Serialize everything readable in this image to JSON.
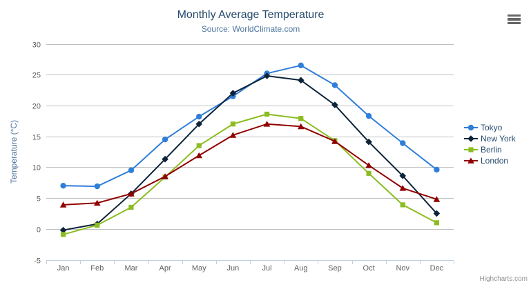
{
  "credits": {
    "label": "Highcharts.com"
  },
  "icons": {
    "export_menu": "hamburger"
  },
  "styles": {
    "title_color": "#274b6d",
    "subtitle_color": "#4d759e",
    "axis_title_color": "#4d759e",
    "axis_label_color": "#606060",
    "grid_color": "#c0c0c0",
    "axis_line_color": "#c0d0e0",
    "legend_text_color": "#274b6d",
    "credits_color": "#909090",
    "export_icon_color": "#666666",
    "background": "#ffffff"
  },
  "chart_data": {
    "type": "line",
    "title": "Monthly Average Temperature",
    "subtitle": "Source: WorldClimate.com",
    "xlabel": "",
    "ylabel": "Temperature (°C)",
    "categories": [
      "Jan",
      "Feb",
      "Mar",
      "Apr",
      "May",
      "Jun",
      "Jul",
      "Aug",
      "Sep",
      "Oct",
      "Nov",
      "Dec"
    ],
    "ylim": [
      -5,
      30
    ],
    "yticks": [
      -5,
      0,
      5,
      10,
      15,
      20,
      25,
      30
    ],
    "grid": true,
    "legend_position": "right",
    "series": [
      {
        "name": "Tokyo",
        "color": "#2f7ed8",
        "marker": "circle",
        "values": [
          7.0,
          6.9,
          9.5,
          14.5,
          18.2,
          21.5,
          25.2,
          26.5,
          23.3,
          18.3,
          13.9,
          9.6
        ]
      },
      {
        "name": "New York",
        "color": "#0d233a",
        "marker": "diamond",
        "values": [
          -0.2,
          0.8,
          5.7,
          11.3,
          17.0,
          22.0,
          24.8,
          24.1,
          20.1,
          14.1,
          8.6,
          2.5
        ]
      },
      {
        "name": "Berlin",
        "color": "#8bbc21",
        "marker": "square",
        "values": [
          -0.9,
          0.6,
          3.5,
          8.4,
          13.5,
          17.0,
          18.6,
          17.9,
          14.3,
          9.0,
          3.9,
          1.0
        ]
      },
      {
        "name": "London",
        "color": "#910000",
        "marker": "triangle",
        "values": [
          3.9,
          4.2,
          5.7,
          8.5,
          11.9,
          15.2,
          17.0,
          16.6,
          14.2,
          10.3,
          6.6,
          4.8
        ]
      }
    ]
  }
}
